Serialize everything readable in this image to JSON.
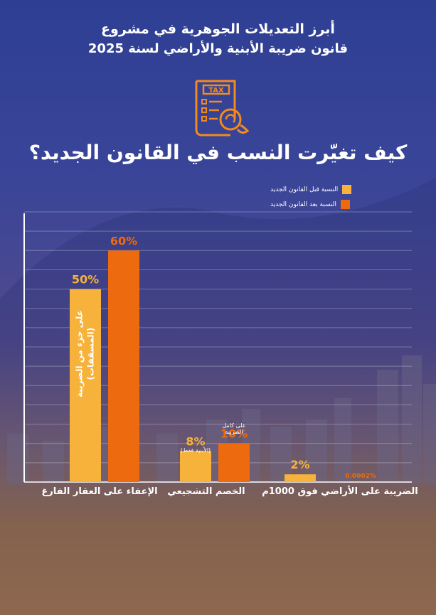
{
  "header": {
    "line1": "أبرز التعديلات الجوهرية في مشروع",
    "line2": "قانون ضريبة الأبنية والأراضي لسنة 2025",
    "question": "كيف تغيّرت النسب في القانون الجديد؟"
  },
  "icon": {
    "name": "tax-document-icon",
    "label": "TAX"
  },
  "colors": {
    "before": "#f7b23b",
    "after": "#ee6a0f",
    "text": "#ffffff"
  },
  "chart_data": {
    "type": "bar",
    "categories": [
      "الإعفاء على العقار الفارغ",
      "الخصم التشجيعي",
      "الضريبة على الأراضي فوق 1000م"
    ],
    "series": [
      {
        "name": "النسبة قبل القانون الجديد",
        "values": [
          50,
          8,
          2
        ],
        "labels": [
          "50%",
          "8%",
          "2%"
        ]
      },
      {
        "name": "النسبة بعد القانون الجديد",
        "values": [
          60,
          10,
          0.0002
        ],
        "labels": [
          "60%",
          "10%",
          "0.0002%"
        ]
      }
    ],
    "ylim": [
      0,
      70
    ],
    "grid": true,
    "legend": "top-right",
    "annotations": {
      "exemption_before": "على جزء من الضريبة (المسقفات)",
      "discount_before": "(الأبنية فقط)",
      "discount_after": "على كامل الضريبة"
    }
  }
}
